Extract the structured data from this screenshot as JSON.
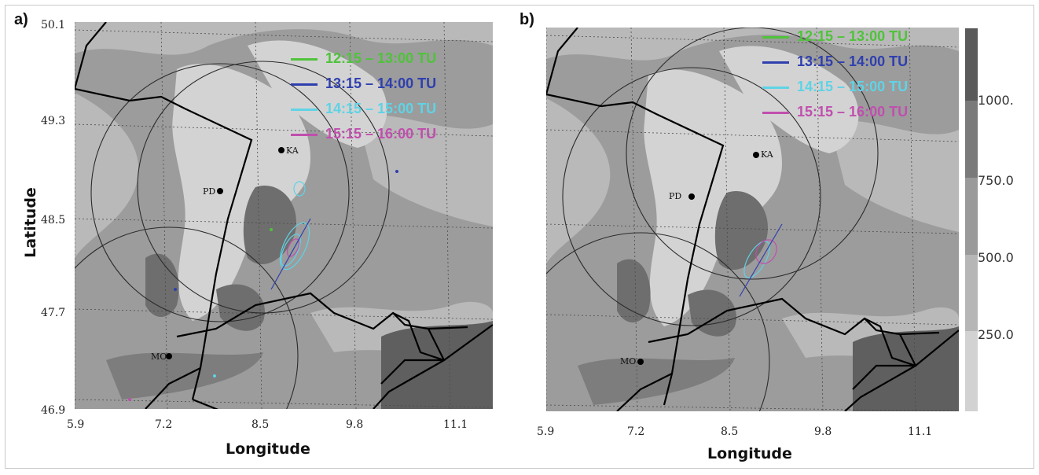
{
  "panels": [
    {
      "label": "a)",
      "y_ticks": [
        "50.1",
        "49.3",
        "48.5",
        "47.7",
        "46.9"
      ],
      "x_ticks": [
        "5.9",
        "7.2",
        "8.5",
        "9.8",
        "11.1"
      ],
      "cities": [
        "KA",
        "PD",
        "MO"
      ]
    },
    {
      "label": "b)",
      "x_ticks": [
        "5.9",
        "7.2",
        "8.5",
        "9.8",
        "11.1"
      ],
      "cities": [
        "KA",
        "PD",
        "MO"
      ]
    }
  ],
  "axes": {
    "ylabel": "Latitude",
    "xlabel": "Longitude"
  },
  "legend": [
    {
      "label": "12:15 – 13:00 TU",
      "color": "#4fc33a"
    },
    {
      "label": "13:15 – 14:00 TU",
      "color": "#2f3fae"
    },
    {
      "label": "14:15 – 15:00 TU",
      "color": "#5fd3e6"
    },
    {
      "label": "15:15 – 16:00 TU",
      "color": "#c04fae"
    }
  ],
  "colorbar": {
    "labels": [
      "1000.",
      "750.0",
      "500.0",
      "250.0"
    ],
    "shades": [
      "#5a5a5a",
      "#7a7a7a",
      "#9a9a9a",
      "#b6b6b6",
      "#d2d2d2"
    ]
  },
  "terrain_colors": {
    "high": "#6e6e6e",
    "mid": "#9c9c9c",
    "low": "#b9b9b9",
    "plain": "#d3d3d3"
  }
}
